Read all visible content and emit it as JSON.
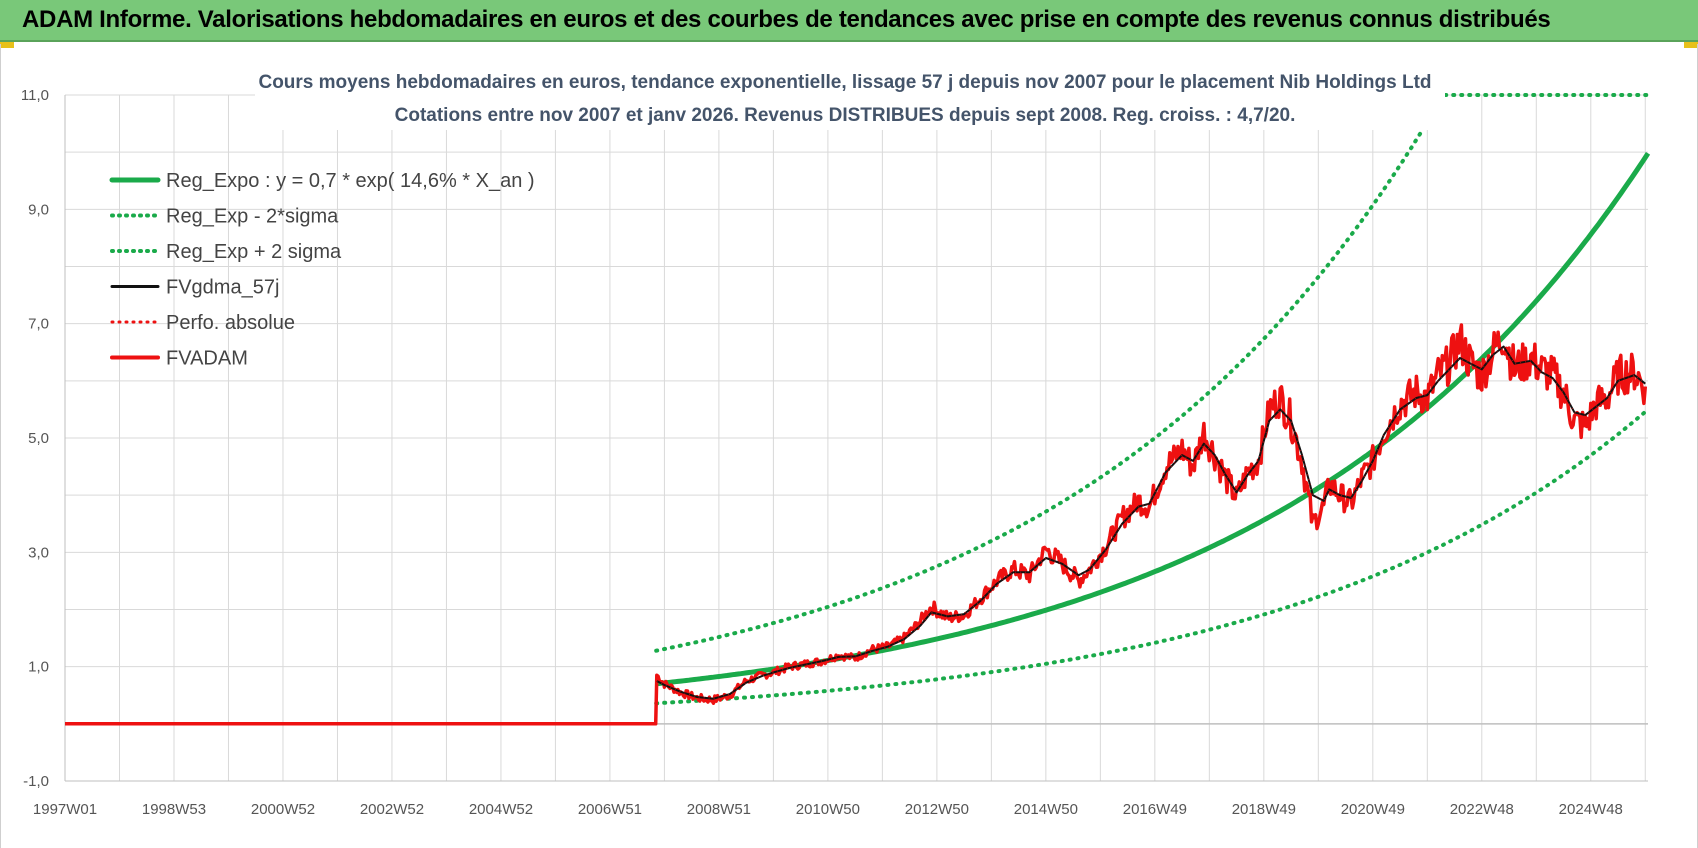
{
  "header": {
    "title": "ADAM Informe. Valorisations hebdomadaires en euros et des courbes de tendances avec prise en compte des revenus connus distribués"
  },
  "colors": {
    "header_bg": "#79c879",
    "green": "#1aaa4a",
    "red": "#ee1111",
    "black": "#111111",
    "grid": "#d9d9d9"
  },
  "chart_data": {
    "type": "line",
    "title_lines": [
      "Cours moyens  hebdomadaires en euros, tendance exponentielle, lissage 57 j depuis nov 2007  pour le placement Nib Holdings Ltd",
      "Cotations entre nov 2007 et janv 2026. Revenus DISTRIBUES depuis sept 2008. Reg. croiss. : 4,7/20."
    ],
    "y_ticks": [
      "11,0",
      "9,0",
      "7,0",
      "5,0",
      "3,0",
      "1,0",
      "-1,0"
    ],
    "ylim": [
      -1,
      11
    ],
    "x_ticks": [
      "1997W01",
      "1998W53",
      "2000W52",
      "2002W52",
      "2004W52",
      "2006W51",
      "2008W51",
      "2010W50",
      "2012W50",
      "2014W50",
      "2016W49",
      "2018W49",
      "2020W49",
      "2022W48",
      "2024W48"
    ],
    "x_tick_years": [
      1997.0,
      1999.0,
      2001.0,
      2003.0,
      2005.0,
      2007.0,
      2009.0,
      2011.0,
      2013.0,
      2015.0,
      2017.0,
      2019.0,
      2021.0,
      2023.0,
      2025.0
    ],
    "xlim": [
      1997.0,
      2026.05
    ],
    "grid": true,
    "legend_position": "top-left",
    "legend": [
      {
        "label": "Reg_Expo : y = 0,7 * exp( 14,6% *  X_an )",
        "color": "#1aaa4a",
        "style": "solid",
        "width": 5
      },
      {
        "label": "Reg_Exp - 2*sigma",
        "color": "#1aaa4a",
        "style": "dotted",
        "width": 4
      },
      {
        "label": "Reg_Exp + 2 sigma",
        "color": "#1aaa4a",
        "style": "dotted",
        "width": 4
      },
      {
        "label": "FVgdma_57j",
        "color": "#111111",
        "style": "solid",
        "width": 3
      },
      {
        "label": "Perfo. absolue",
        "color": "#ee1111",
        "style": "dotted",
        "width": 3
      },
      {
        "label": "FVADAM",
        "color": "#ee1111",
        "style": "solid",
        "width": 4
      }
    ],
    "regression": {
      "coef": 0.7,
      "growth_rate": 0.146,
      "start": 2007.85,
      "end": 2026.05,
      "lower_band_start": 0.36,
      "lower_band_end": 5.5,
      "upper_band_start": 1.28,
      "upper_band_cap": 11.0
    },
    "fvadam_series": {
      "x": [
        1997.0,
        2007.84,
        2007.86,
        2008.0,
        2008.3,
        2008.6,
        2008.9,
        2009.2,
        2009.5,
        2009.8,
        2010.0,
        2010.3,
        2010.6,
        2010.9,
        2011.2,
        2011.5,
        2011.8,
        2012.1,
        2012.4,
        2012.7,
        2012.9,
        2013.2,
        2013.5,
        2013.8,
        2014.1,
        2014.4,
        2014.7,
        2015.0,
        2015.3,
        2015.6,
        2015.8,
        2016.1,
        2016.4,
        2016.7,
        2016.9,
        2017.2,
        2017.5,
        2017.7,
        2017.9,
        2018.1,
        2018.3,
        2018.5,
        2018.7,
        2018.9,
        2019.1,
        2019.3,
        2019.5,
        2019.7,
        2019.9,
        2020.1,
        2020.2,
        2020.4,
        2020.6,
        2020.8,
        2021.0,
        2021.2,
        2021.5,
        2021.8,
        2022.0,
        2022.2,
        2022.4,
        2022.6,
        2022.8,
        2023.0,
        2023.2,
        2023.4,
        2023.6,
        2023.9,
        2024.1,
        2024.3,
        2024.5,
        2024.7,
        2024.9,
        2025.1,
        2025.3,
        2025.5,
        2025.8,
        2026.0
      ],
      "y": [
        0,
        0,
        0.85,
        0.7,
        0.55,
        0.45,
        0.42,
        0.5,
        0.75,
        0.85,
        0.9,
        1.0,
        1.05,
        1.1,
        1.2,
        1.15,
        1.3,
        1.35,
        1.5,
        1.8,
        2.05,
        1.85,
        1.9,
        2.2,
        2.5,
        2.7,
        2.6,
        3.05,
        2.8,
        2.5,
        2.7,
        3.1,
        3.6,
        3.9,
        3.8,
        4.5,
        4.8,
        4.5,
        5.1,
        4.7,
        4.3,
        3.95,
        4.4,
        4.6,
        5.5,
        5.7,
        5.3,
        4.6,
        3.5,
        3.8,
        4.2,
        4.0,
        3.85,
        4.3,
        4.6,
        5.1,
        5.6,
        5.8,
        5.7,
        6.1,
        6.3,
        6.7,
        6.3,
        6.1,
        6.5,
        6.8,
        6.2,
        6.4,
        6.2,
        6.1,
        5.8,
        5.3,
        5.2,
        5.6,
        5.7,
        6.1,
        6.15,
        5.9
      ]
    },
    "fvgdma_series": {
      "x": [
        2007.86,
        2008.0,
        2008.3,
        2008.6,
        2008.9,
        2009.2,
        2009.5,
        2009.8,
        2010.0,
        2010.3,
        2010.6,
        2010.9,
        2011.2,
        2011.5,
        2011.8,
        2012.1,
        2012.4,
        2012.7,
        2012.9,
        2013.2,
        2013.5,
        2013.8,
        2014.1,
        2014.4,
        2014.7,
        2015.0,
        2015.3,
        2015.6,
        2015.8,
        2016.1,
        2016.4,
        2016.7,
        2016.9,
        2017.2,
        2017.5,
        2017.7,
        2017.9,
        2018.1,
        2018.3,
        2018.5,
        2018.7,
        2018.9,
        2019.1,
        2019.3,
        2019.5,
        2019.7,
        2019.9,
        2020.1,
        2020.2,
        2020.4,
        2020.6,
        2020.8,
        2021.0,
        2021.2,
        2021.5,
        2021.8,
        2022.0,
        2022.2,
        2022.4,
        2022.6,
        2022.8,
        2023.0,
        2023.2,
        2023.4,
        2023.6,
        2023.9,
        2024.1,
        2024.3,
        2024.5,
        2024.7,
        2024.9,
        2025.1,
        2025.3,
        2025.5,
        2025.8,
        2026.0
      ],
      "y": [
        0.75,
        0.68,
        0.56,
        0.47,
        0.44,
        0.52,
        0.72,
        0.84,
        0.9,
        0.98,
        1.04,
        1.1,
        1.17,
        1.18,
        1.27,
        1.35,
        1.48,
        1.72,
        1.95,
        1.88,
        1.92,
        2.15,
        2.45,
        2.65,
        2.65,
        2.9,
        2.8,
        2.6,
        2.7,
        3.05,
        3.5,
        3.8,
        3.85,
        4.4,
        4.7,
        4.6,
        4.9,
        4.7,
        4.35,
        4.05,
        4.35,
        4.6,
        5.3,
        5.5,
        5.3,
        4.7,
        4.0,
        3.9,
        4.1,
        4.0,
        3.95,
        4.25,
        4.6,
        5.05,
        5.5,
        5.7,
        5.75,
        6.0,
        6.2,
        6.4,
        6.3,
        6.2,
        6.45,
        6.6,
        6.3,
        6.35,
        6.15,
        6.05,
        5.8,
        5.45,
        5.4,
        5.55,
        5.7,
        6.0,
        6.1,
        5.95
      ]
    }
  }
}
